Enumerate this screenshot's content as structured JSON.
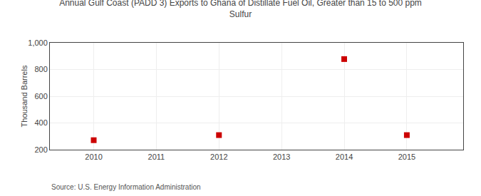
{
  "chart_data": {
    "type": "scatter",
    "title": "Annual Gulf Coast (PADD 3) Exports to Ghana of Distillate Fuel Oil, Greater than 15 to 500 ppm\nSulfur",
    "y_label": "Thousand Barrels",
    "annotations": [
      "Source: U.S. Energy Information Administration"
    ],
    "x": [
      2010,
      2012,
      2014,
      2015
    ],
    "values": [
      271,
      309,
      878,
      309
    ],
    "color": "#cc0000",
    "marker": "square",
    "xlim": [
      2009.3,
      2015.9
    ],
    "ylim": [
      200,
      1000
    ],
    "xticks": [
      2010,
      2011,
      2012,
      2013,
      2014,
      2015
    ],
    "yticks": [
      200,
      400,
      600,
      800,
      {
        "value": 1000,
        "label": "1,000"
      }
    ],
    "grid": true
  }
}
